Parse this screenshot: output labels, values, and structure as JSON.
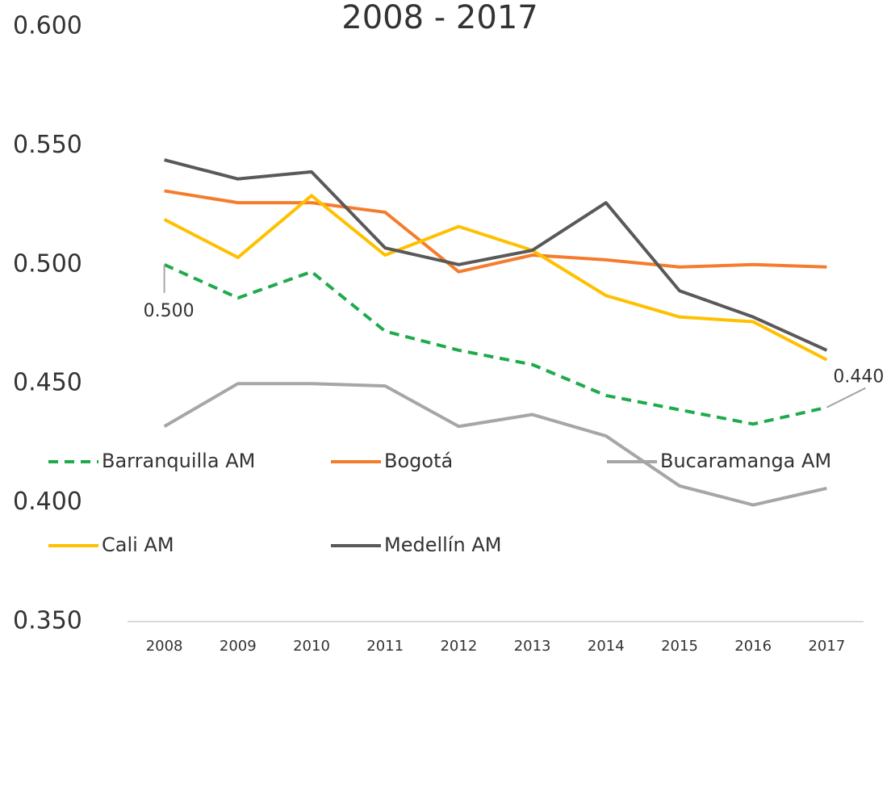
{
  "chart_data": {
    "type": "line",
    "title": "2008 - 2017",
    "categories": [
      "2008",
      "2009",
      "2010",
      "2011",
      "2012",
      "2013",
      "2014",
      "2015",
      "2016",
      "2017"
    ],
    "ylim": [
      0.35,
      0.6
    ],
    "yticks": [
      {
        "value": 0.35,
        "label": "0.350"
      },
      {
        "value": 0.4,
        "label": "0.400"
      },
      {
        "value": 0.45,
        "label": "0.450"
      },
      {
        "value": 0.5,
        "label": "0.500"
      },
      {
        "value": 0.55,
        "label": "0.550"
      },
      {
        "value": 0.6,
        "label": "0.600"
      }
    ],
    "grid": false,
    "legend": "bottom",
    "series": [
      {
        "name": "Barranquilla AM",
        "color": "#1faa4b",
        "dashed": true,
        "values": [
          0.5,
          0.486,
          0.497,
          0.472,
          0.464,
          0.458,
          0.445,
          0.439,
          0.433,
          0.44
        ],
        "value_labels": [
          "0.500",
          null,
          null,
          null,
          null,
          null,
          null,
          null,
          null,
          "0.440"
        ]
      },
      {
        "name": "Bogotá",
        "color": "#f47c2c",
        "values": [
          0.531,
          0.526,
          0.526,
          0.522,
          0.497,
          0.504,
          0.502,
          0.499,
          0.5,
          0.499
        ]
      },
      {
        "name": "Bucaramanga AM",
        "color": "#a6a6a6",
        "values": [
          0.432,
          0.45,
          0.45,
          0.449,
          0.432,
          0.437,
          0.428,
          0.407,
          0.399,
          0.406
        ]
      },
      {
        "name": "Cali AM",
        "color": "#ffc000",
        "values": [
          0.519,
          0.503,
          0.529,
          0.504,
          0.516,
          0.506,
          0.487,
          0.478,
          0.476,
          0.46
        ]
      },
      {
        "name": "Medellín AM",
        "color": "#595959",
        "values": [
          0.544,
          0.536,
          0.539,
          0.507,
          0.5,
          0.506,
          0.526,
          0.489,
          0.478,
          0.464
        ]
      }
    ]
  }
}
